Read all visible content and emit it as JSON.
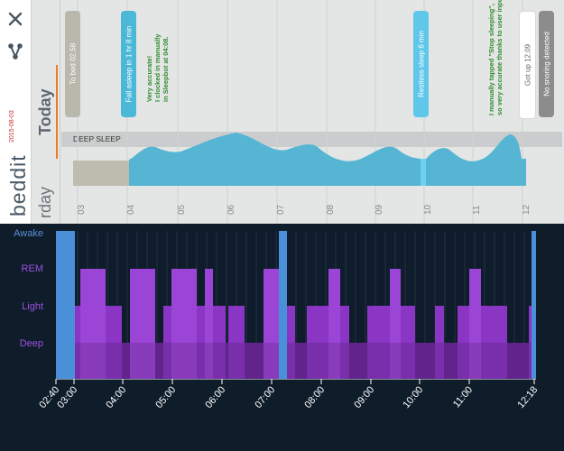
{
  "app": {
    "logo_text": "beddit",
    "date": "2015-08-03",
    "today_label": "Today",
    "yesterday_partial": "rday"
  },
  "sidebar": {
    "icons": [
      "close-icon",
      "share-icon"
    ]
  },
  "beddit_chart": {
    "deep_sleep_label": "DEEP SLEEP",
    "hour_ticks": [
      "03",
      "04",
      "05",
      "06",
      "07",
      "08",
      "09",
      "10",
      "11",
      "12"
    ],
    "events": [
      {
        "label": "To bed 02.58",
        "color": "#b9b8ac"
      },
      {
        "label": "Fall asleep in 1 hr 8 min",
        "color": "#4cb8d8"
      },
      {
        "label": "Restless sleep 6 min",
        "color": "#5fc8ea"
      },
      {
        "label": "Got up 12.09",
        "color": "#ffffff"
      },
      {
        "label": "No snoring detected",
        "color": "#8c8c8c"
      }
    ],
    "notes": [
      "Very accurate!\nI clocked in manually\nin Sleepbot at 04:08.",
      "I manually tapped \"Stop sleeping\",\nso very accurate thanks to user input."
    ],
    "colors": {
      "awake_block": "#bdbcaf",
      "sleep_area": "#55b5d3",
      "restless_marker": "#6fd0f0",
      "deep_band": "#c9cacb",
      "today_accent": "#f07b20"
    }
  },
  "hypnogram": {
    "levels": [
      "Awake",
      "REM",
      "Light",
      "Deep"
    ],
    "x_labels": [
      "02:40",
      "03:00",
      "04:00",
      "05:00",
      "06:00",
      "07:00",
      "08:00",
      "09:00",
      "10:00",
      "11:00",
      "12:18"
    ],
    "colors": {
      "awake": "#4a90d9",
      "rem": "#9b45d6",
      "light": "#8a35c4",
      "deep": "#6e2aa0",
      "axis_text": "#ffffff",
      "awake_label": "#5b8fd8",
      "level_label": "#9c50e0"
    }
  }
}
